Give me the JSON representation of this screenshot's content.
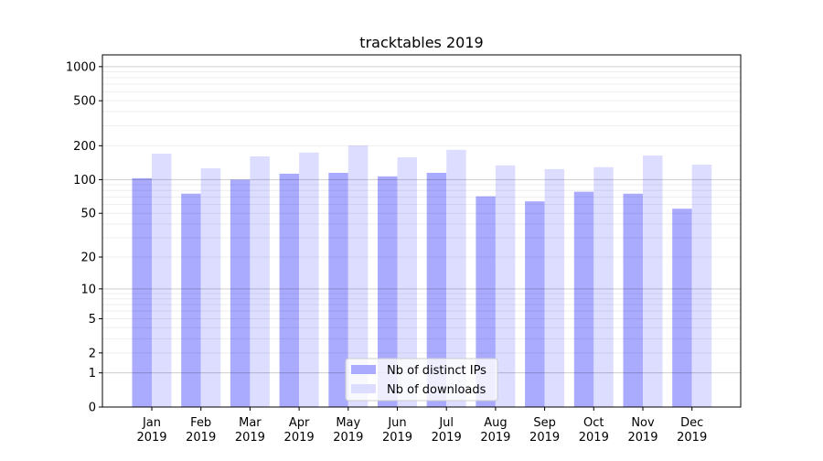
{
  "chart_data": {
    "type": "bar",
    "title": "tracktables 2019",
    "xlabel": "",
    "ylabel": "",
    "yscale": "log(1+y)",
    "ylim": [
      0,
      1270
    ],
    "yticks": [
      0,
      1,
      2,
      5,
      10,
      20,
      50,
      100,
      200,
      500,
      1000
    ],
    "grid": true,
    "legend_position": "bottom-center",
    "categories": [
      "Jan\n2019",
      "Feb\n2019",
      "Mar\n2019",
      "Apr\n2019",
      "May\n2019",
      "Jun\n2019",
      "Jul\n2019",
      "Aug\n2019",
      "Sep\n2019",
      "Oct\n2019",
      "Nov\n2019",
      "Dec\n2019"
    ],
    "series": [
      {
        "name": "Nb of distinct IPs",
        "color": "#aaaaff",
        "values": [
          103,
          75,
          100,
          113,
          115,
          107,
          115,
          71,
          64,
          78,
          75,
          55
        ]
      },
      {
        "name": "Nb of downloads",
        "color": "#ddddff",
        "values": [
          170,
          126,
          161,
          174,
          201,
          158,
          184,
          134,
          124,
          129,
          164,
          136
        ]
      }
    ]
  }
}
